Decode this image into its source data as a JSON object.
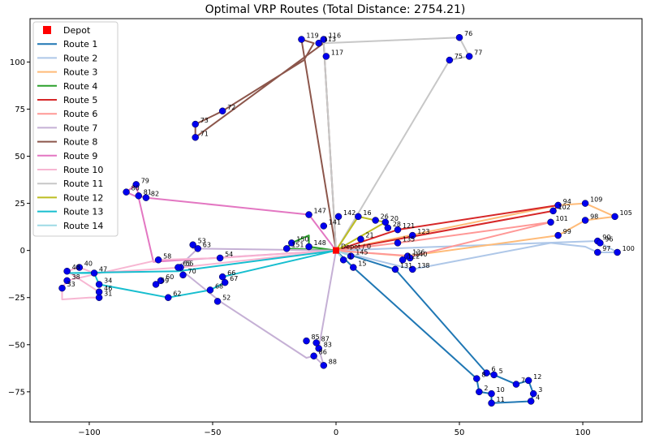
{
  "chart_data": {
    "type": "line",
    "title": "Optimal VRP Routes (Total Distance: 2754.21)",
    "xlabel": "",
    "ylabel": "",
    "xlim": [
      -124,
      124
    ],
    "ylim": [
      -91,
      123
    ],
    "x_ticks": [
      -100,
      -50,
      0,
      50,
      100
    ],
    "y_ticks": [
      -75,
      -50,
      -25,
      0,
      25,
      50,
      75,
      100
    ],
    "grid": false,
    "legend_position": "top-left",
    "depot": {
      "name": "Depot",
      "x": 0,
      "y": 0,
      "label": "Depot / 0",
      "color": "#ff0000"
    },
    "node_color": "#0000ee",
    "nodes": [
      {
        "id": "1",
        "x": 3,
        "y": -5
      },
      {
        "id": "2",
        "x": 58,
        "y": -75
      },
      {
        "id": "3",
        "x": 80,
        "y": -76
      },
      {
        "id": "4",
        "x": 79,
        "y": -80
      },
      {
        "id": "5",
        "x": 64,
        "y": -66
      },
      {
        "id": "6",
        "x": 61,
        "y": -65
      },
      {
        "id": "7",
        "x": 73,
        "y": -71
      },
      {
        "id": "8",
        "x": 57,
        "y": -68
      },
      {
        "id": "10",
        "x": 63,
        "y": -76
      },
      {
        "id": "11",
        "x": 63,
        "y": -81
      },
      {
        "id": "12",
        "x": 78,
        "y": -69
      },
      {
        "id": "15",
        "x": 7,
        "y": -9
      },
      {
        "id": "16",
        "x": 9,
        "y": 18
      },
      {
        "id": "20",
        "x": 20,
        "y": 15
      },
      {
        "id": "21",
        "x": 10,
        "y": 6
      },
      {
        "id": "26",
        "x": 16,
        "y": 16
      },
      {
        "id": "28",
        "x": 21,
        "y": 12
      },
      {
        "id": "31",
        "x": -96,
        "y": -25
      },
      {
        "id": "33",
        "x": -111,
        "y": -20
      },
      {
        "id": "34",
        "x": -96,
        "y": -18
      },
      {
        "id": "38",
        "x": -109,
        "y": -16
      },
      {
        "id": "40",
        "x": -104,
        "y": -9
      },
      {
        "id": "46",
        "x": -96,
        "y": -22
      },
      {
        "id": "47",
        "x": -98,
        "y": -12
      },
      {
        "id": "48",
        "x": -109,
        "y": -11
      },
      {
        "id": "52",
        "x": -48,
        "y": -27
      },
      {
        "id": "53",
        "x": -58,
        "y": 3
      },
      {
        "id": "54",
        "x": -47,
        "y": -4
      },
      {
        "id": "55",
        "x": -63,
        "y": -9
      },
      {
        "id": "58",
        "x": -72,
        "y": -5
      },
      {
        "id": "59",
        "x": -73,
        "y": -18
      },
      {
        "id": "60",
        "x": -71,
        "y": -16
      },
      {
        "id": "62",
        "x": -68,
        "y": -25
      },
      {
        "id": "63",
        "x": -56,
        "y": 1
      },
      {
        "id": "65",
        "x": -64,
        "y": -9
      },
      {
        "id": "66",
        "x": -46,
        "y": -14
      },
      {
        "id": "67",
        "x": -45,
        "y": -17
      },
      {
        "id": "68",
        "x": -51,
        "y": -21
      },
      {
        "id": "70",
        "x": -62,
        "y": -13
      },
      {
        "id": "71",
        "x": -57,
        "y": 60
      },
      {
        "id": "72",
        "x": -46,
        "y": 74
      },
      {
        "id": "73",
        "x": -57,
        "y": 67
      },
      {
        "id": "75",
        "x": 46,
        "y": 101
      },
      {
        "id": "76",
        "x": 50,
        "y": 113
      },
      {
        "id": "77",
        "x": 54,
        "y": 103
      },
      {
        "id": "79",
        "x": -81,
        "y": 35
      },
      {
        "id": "80",
        "x": -85,
        "y": 31
      },
      {
        "id": "81",
        "x": -80,
        "y": 29
      },
      {
        "id": "82",
        "x": -77,
        "y": 28
      },
      {
        "id": "83",
        "x": -7,
        "y": -52
      },
      {
        "id": "85",
        "x": -12,
        "y": -48
      },
      {
        "id": "86",
        "x": -9,
        "y": -56
      },
      {
        "id": "87",
        "x": -8,
        "y": -49
      },
      {
        "id": "88",
        "x": -5,
        "y": -61
      },
      {
        "id": "90",
        "x": 106,
        "y": 5
      },
      {
        "id": "94",
        "x": 90,
        "y": 24
      },
      {
        "id": "96",
        "x": 107,
        "y": 4
      },
      {
        "id": "97",
        "x": 106,
        "y": -1
      },
      {
        "id": "98",
        "x": 101,
        "y": 16
      },
      {
        "id": "99",
        "x": 90,
        "y": 8
      },
      {
        "id": "100",
        "x": 114,
        "y": -1
      },
      {
        "id": "101",
        "x": 87,
        "y": 15
      },
      {
        "id": "102",
        "x": 88,
        "y": 21
      },
      {
        "id": "105",
        "x": 113,
        "y": 18
      },
      {
        "id": "109",
        "x": 101,
        "y": 25
      },
      {
        "id": "113",
        "x": -7,
        "y": 110
      },
      {
        "id": "116",
        "x": -5,
        "y": 112
      },
      {
        "id": "117",
        "x": -4,
        "y": 103
      },
      {
        "id": "119",
        "x": -14,
        "y": 112
      },
      {
        "id": "121",
        "x": 25,
        "y": 11
      },
      {
        "id": "122",
        "x": 27,
        "y": -5
      },
      {
        "id": "123",
        "x": 31,
        "y": 8
      },
      {
        "id": "131",
        "x": 24,
        "y": -10
      },
      {
        "id": "135",
        "x": 25,
        "y": 4
      },
      {
        "id": "136",
        "x": 29,
        "y": -3
      },
      {
        "id": "138",
        "x": 31,
        "y": -10
      },
      {
        "id": "140",
        "x": 30,
        "y": -4
      },
      {
        "id": "141",
        "x": -5,
        "y": 13
      },
      {
        "id": "142",
        "x": 1,
        "y": 18
      },
      {
        "id": "145",
        "x": 6,
        "y": -3
      },
      {
        "id": "147",
        "x": -11,
        "y": 19
      },
      {
        "id": "148",
        "x": -11,
        "y": 2
      },
      {
        "id": "150",
        "x": -18,
        "y": 4
      },
      {
        "id": "151",
        "x": -20,
        "y": 1
      }
    ],
    "series": [
      {
        "name": "Route 1",
        "color": "#1f77b4",
        "points": [
          [
            0,
            0
          ],
          [
            7,
            -9
          ],
          [
            57,
            -68
          ],
          [
            58,
            -75
          ],
          [
            63,
            -76
          ],
          [
            63,
            -81
          ],
          [
            79,
            -80
          ],
          [
            80,
            -76
          ],
          [
            78,
            -69
          ],
          [
            73,
            -71
          ],
          [
            64,
            -66
          ],
          [
            61,
            -65
          ],
          [
            24,
            -10
          ],
          [
            0,
            0
          ]
        ]
      },
      {
        "name": "Route 2",
        "color": "#aec7e8",
        "points": [
          [
            0,
            0
          ],
          [
            31,
            -10
          ],
          [
            87,
            4
          ],
          [
            101,
            2
          ],
          [
            106,
            -1
          ],
          [
            114,
            -1
          ],
          [
            107,
            4
          ],
          [
            106,
            5
          ],
          [
            0,
            0
          ]
        ]
      },
      {
        "name": "Route 3",
        "color": "#ffbb78",
        "points": [
          [
            0,
            0
          ],
          [
            29,
            -3
          ],
          [
            90,
            8
          ],
          [
            101,
            16
          ],
          [
            113,
            18
          ],
          [
            101,
            25
          ],
          [
            90,
            24
          ],
          [
            0,
            0
          ]
        ]
      },
      {
        "name": "Route 4",
        "color": "#2ca02c",
        "points": [
          [
            0,
            0
          ],
          [
            -11,
            2
          ],
          [
            -11,
            8
          ],
          [
            -18,
            4
          ],
          [
            -20,
            1
          ],
          [
            0,
            0
          ]
        ]
      },
      {
        "name": "Route 5",
        "color": "#d62728",
        "points": [
          [
            0,
            0
          ],
          [
            25,
            11
          ],
          [
            90,
            24
          ],
          [
            88,
            21
          ],
          [
            0,
            0
          ]
        ]
      },
      {
        "name": "Route 6",
        "color": "#ff9896",
        "points": [
          [
            0,
            0
          ],
          [
            25,
            4
          ],
          [
            87,
            15
          ],
          [
            31,
            -3
          ],
          [
            0,
            0
          ]
        ]
      },
      {
        "name": "Route 7",
        "color": "#c5b0d5",
        "points": [
          [
            0,
            0
          ],
          [
            -58,
            1
          ],
          [
            -56,
            1
          ],
          [
            -64,
            -9
          ],
          [
            -47,
            -27
          ],
          [
            -12,
            -57
          ],
          [
            -9,
            -56
          ],
          [
            -5,
            -61
          ],
          [
            -7,
            -52
          ],
          [
            0,
            0
          ]
        ]
      },
      {
        "name": "Route 8",
        "color": "#8c564b",
        "points": [
          [
            0,
            0
          ],
          [
            -14,
            112
          ],
          [
            -9,
            110
          ],
          [
            -13,
            101
          ],
          [
            -46,
            74
          ],
          [
            -49,
            72
          ],
          [
            -57,
            67
          ],
          [
            -57,
            60
          ],
          [
            -5,
            110
          ],
          [
            0,
            0
          ]
        ]
      },
      {
        "name": "Route 9",
        "color": "#e377c2",
        "points": [
          [
            0,
            0
          ],
          [
            -11,
            19
          ],
          [
            -77,
            28
          ],
          [
            -80,
            29
          ],
          [
            -81,
            35
          ],
          [
            -85,
            31
          ],
          [
            -80,
            28
          ],
          [
            -74,
            -6
          ],
          [
            0,
            0
          ]
        ]
      },
      {
        "name": "Route 10",
        "color": "#f7b6d2",
        "points": [
          [
            0,
            0
          ],
          [
            -47,
            -4
          ],
          [
            -72,
            -5
          ],
          [
            -109,
            -16
          ],
          [
            -111,
            -20
          ],
          [
            -111,
            -26
          ],
          [
            -100,
            -25
          ],
          [
            -96,
            -25
          ],
          [
            -96,
            -22
          ],
          [
            -109,
            -11
          ],
          [
            -104,
            -9
          ],
          [
            -98,
            -12
          ],
          [
            -63,
            -9
          ],
          [
            0,
            0
          ]
        ]
      },
      {
        "name": "Route 11",
        "color": "#c7c7c7",
        "points": [
          [
            0,
            0
          ],
          [
            -5,
            110
          ],
          [
            50,
            113
          ],
          [
            54,
            103
          ],
          [
            46,
            101
          ],
          [
            0,
            0
          ]
        ]
      },
      {
        "name": "Route 12",
        "color": "#bcbd22",
        "points": [
          [
            0,
            0
          ],
          [
            9,
            18
          ],
          [
            16,
            16
          ],
          [
            20,
            15
          ],
          [
            0,
            0
          ]
        ]
      },
      {
        "name": "Route 13",
        "color": "#17becf",
        "points": [
          [
            0,
            0
          ],
          [
            -46,
            -14
          ],
          [
            -45,
            -17
          ],
          [
            -51,
            -21
          ],
          [
            -68,
            -25
          ],
          [
            -96,
            -18
          ],
          [
            -98,
            -12
          ],
          [
            -108,
            -12
          ],
          [
            -64,
            -11
          ],
          [
            0,
            0
          ]
        ]
      },
      {
        "name": "Route 14",
        "color": "#9edae5",
        "points": [
          [
            0,
            0
          ],
          [
            6,
            -3
          ],
          [
            3,
            -5
          ],
          [
            0,
            0
          ]
        ]
      }
    ]
  }
}
